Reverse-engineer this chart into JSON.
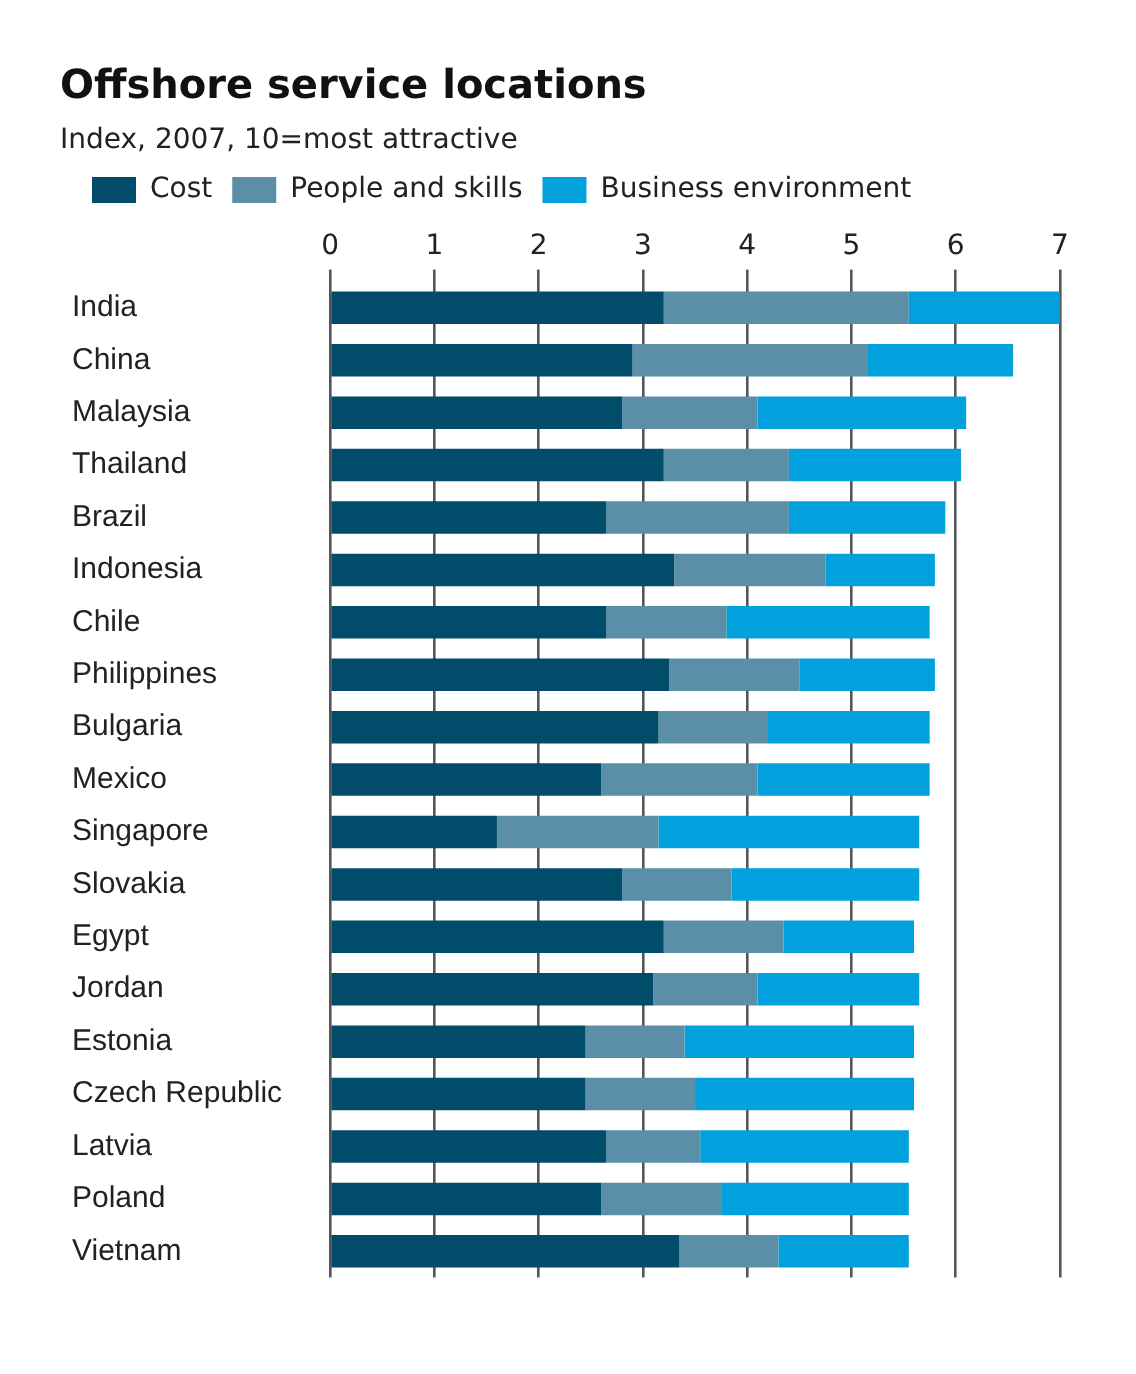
{
  "chart_data": {
    "type": "bar",
    "orientation": "horizontal",
    "stacked": true,
    "title": "Offshore service locations",
    "subtitle": "Index, 2007, 10=most attractive",
    "categories": [
      "India",
      "China",
      "Malaysia",
      "Thailand",
      "Brazil",
      "Indonesia",
      "Chile",
      "Philippines",
      "Bulgaria",
      "Mexico",
      "Singapore",
      "Slovakia",
      "Egypt",
      "Jordan",
      "Estonia",
      "Czech Republic",
      "Latvia",
      "Poland",
      "Vietnam"
    ],
    "series": [
      {
        "name": "Cost",
        "color": "#004c6a",
        "values": [
          3.2,
          2.9,
          2.8,
          3.2,
          2.65,
          3.3,
          2.65,
          3.25,
          3.15,
          2.6,
          1.6,
          2.8,
          3.2,
          3.1,
          2.45,
          2.45,
          2.65,
          2.6,
          3.35
        ]
      },
      {
        "name": "People and skills",
        "color": "#5b8fa8",
        "values": [
          2.35,
          2.25,
          1.3,
          1.2,
          1.75,
          1.45,
          1.15,
          1.25,
          1.05,
          1.5,
          1.55,
          1.05,
          1.15,
          1.0,
          0.95,
          1.05,
          0.9,
          1.15,
          0.95
        ]
      },
      {
        "name": "Business environment",
        "color": "#00a1dc",
        "values": [
          1.45,
          1.4,
          2.0,
          1.65,
          1.5,
          1.05,
          1.95,
          1.3,
          1.55,
          1.65,
          2.5,
          1.8,
          1.25,
          1.55,
          2.2,
          2.1,
          2.0,
          1.8,
          1.25
        ]
      }
    ],
    "xlim": [
      0,
      7
    ],
    "xticks": [
      0,
      1,
      2,
      3,
      4,
      5,
      6,
      7
    ],
    "grid": "x",
    "legend": "top"
  }
}
